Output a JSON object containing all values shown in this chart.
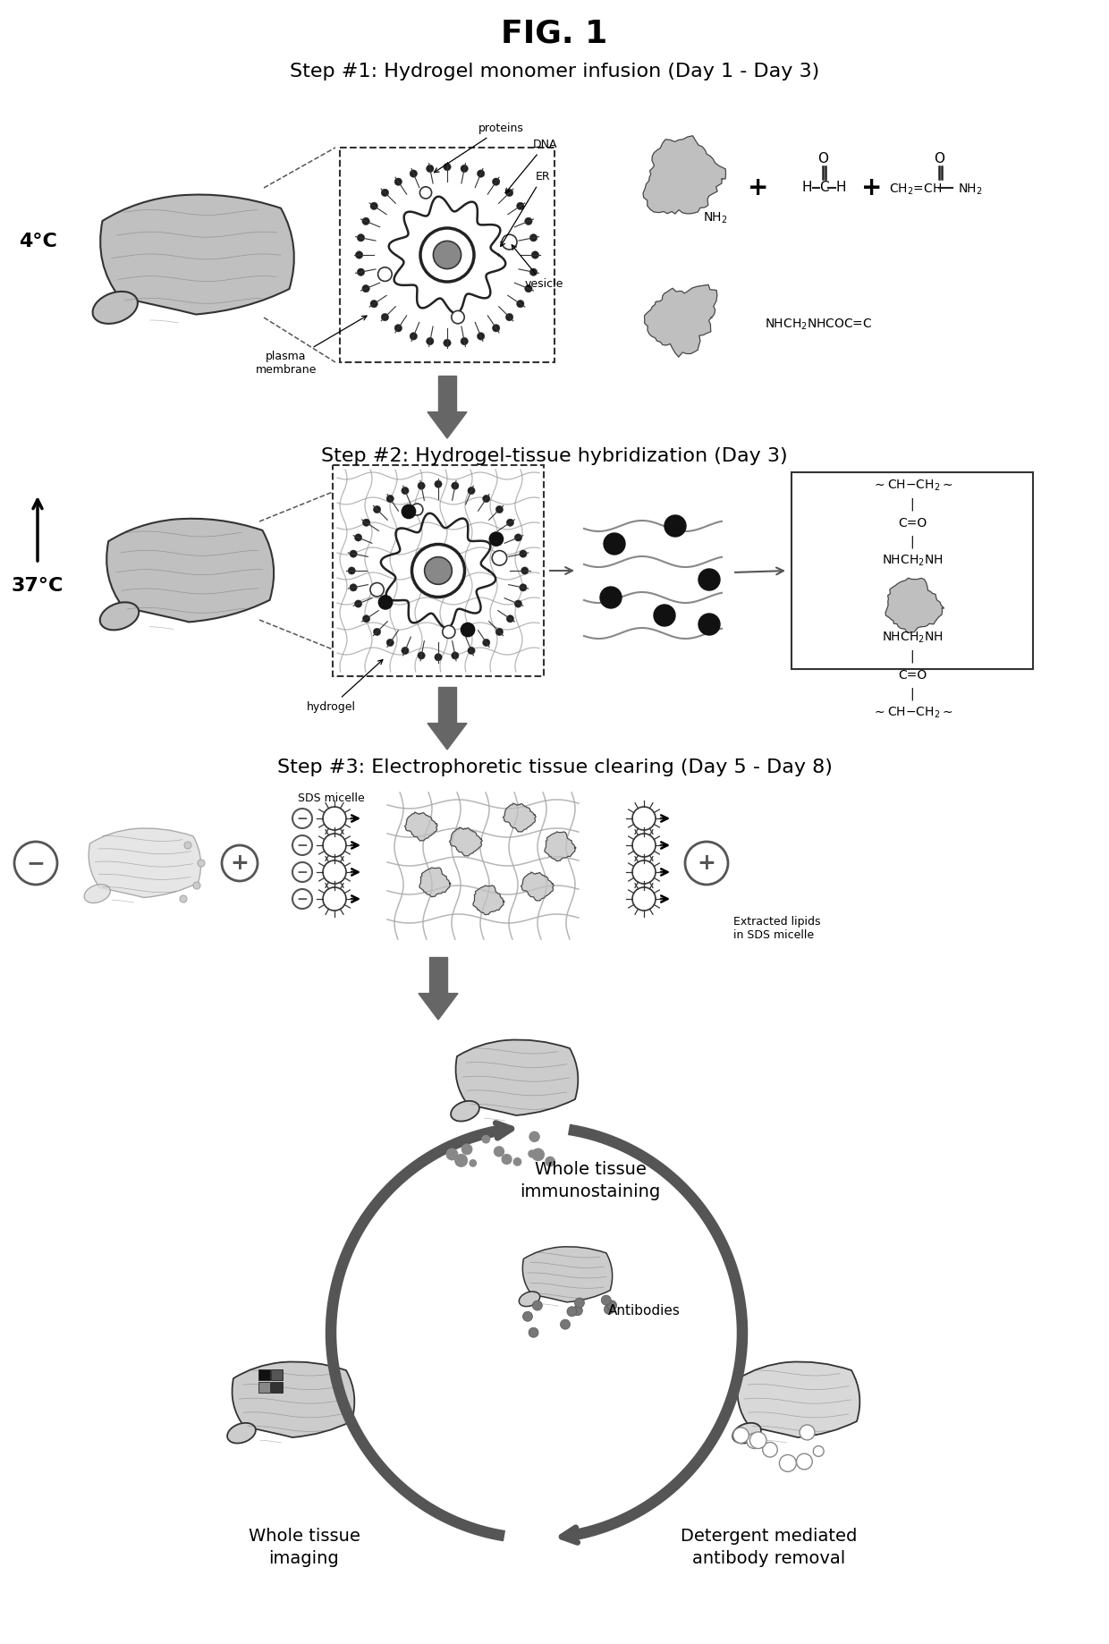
{
  "title": "FIG. 1",
  "step1_title": "Step #1: Hydrogel monomer infusion (Day 1 - Day 3)",
  "step2_title": "Step #2: Hydrogel-tissue hybridization (Day 3)",
  "step3_title": "Step #3: Electrophoretic tissue clearing (Day 5 - Day 8)",
  "temp1": "4°C",
  "temp2": "37°C",
  "label_proteins": "proteins",
  "label_DNA": "DNA",
  "label_ER": "ER",
  "label_vesicle": "vesicle",
  "label_plasma": "plasma\nmembrane",
  "label_hydrogel": "hydrogel",
  "label_sds": "SDS micelle",
  "label_extracted": "Extracted lipids\nin SDS micelle",
  "label_antibodies": "Antibodies",
  "label_whole_immune": "Whole tissue\nimmunostaining",
  "label_whole_imaging": "Whole tissue\nimaging",
  "label_detergent": "Detergent mediated\nantibody removal",
  "bg_color": "#ffffff",
  "dark": "#222222",
  "mid": "#666666",
  "light": "#aaaaaa",
  "vlight": "#cccccc"
}
